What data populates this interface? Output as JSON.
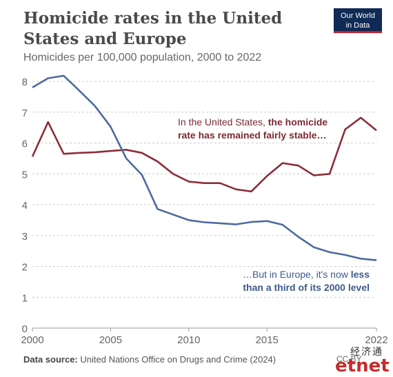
{
  "header": {
    "title": "Homicide rates in the United States and Europe",
    "subtitle": "Homicides per 100,000 population, 2000 to 2022",
    "logo_line1": "Our World",
    "logo_line2": "in Data"
  },
  "annotations": {
    "us_plain": "In the United States, ",
    "us_bold1": "the homicide",
    "us_bold2": "rate has remained fairly stable…",
    "eu_plain": "…But in Europe, it's now ",
    "eu_bold1": "less",
    "eu_bold2": "than a third of its 2000 level"
  },
  "footer": {
    "source_label": "Data source:",
    "source_text": "United Nations Office on Drugs and Crime (2024)",
    "license": "CC BY",
    "watermark_cn": "经济通",
    "watermark_brand": "etnet"
  },
  "colors": {
    "us": "#8b2d38",
    "europe": "#4c6a9c",
    "grid": "#cccccc"
  },
  "chart_data": {
    "type": "line",
    "title": "Homicide rates in the United States and Europe",
    "subtitle": "Homicides per 100,000 population, 2000 to 2022",
    "x": [
      2000,
      2001,
      2002,
      2003,
      2004,
      2005,
      2006,
      2007,
      2008,
      2009,
      2010,
      2011,
      2012,
      2013,
      2014,
      2015,
      2016,
      2017,
      2018,
      2019,
      2020,
      2021,
      2022
    ],
    "xticks": [
      2000,
      2005,
      2010,
      2015,
      2022
    ],
    "xlim": [
      2000,
      2022
    ],
    "ylim": [
      0,
      8
    ],
    "yticks": [
      0,
      1,
      2,
      3,
      4,
      5,
      6,
      7,
      8
    ],
    "grid": true,
    "series": [
      {
        "name": "United States",
        "values": [
          5.56,
          6.68,
          5.65,
          5.68,
          5.7,
          5.74,
          5.78,
          5.68,
          5.4,
          5.0,
          4.75,
          4.7,
          4.7,
          4.5,
          4.43,
          4.93,
          5.35,
          5.27,
          4.95,
          5.0,
          6.44,
          6.82,
          6.41
        ]
      },
      {
        "name": "Europe",
        "values": [
          7.8,
          8.1,
          8.18,
          7.7,
          7.2,
          6.53,
          5.5,
          4.97,
          3.86,
          3.68,
          3.5,
          3.43,
          3.4,
          3.36,
          3.44,
          3.47,
          3.35,
          2.96,
          2.62,
          2.46,
          2.37,
          2.25,
          2.2
        ]
      }
    ]
  }
}
